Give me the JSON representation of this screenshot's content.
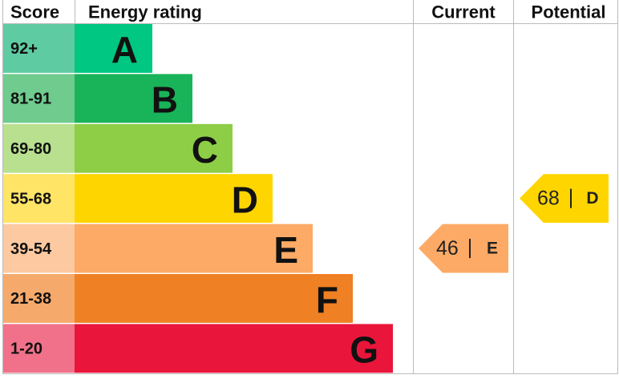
{
  "header": {
    "score": "Score",
    "rating": "Energy rating",
    "current": "Current",
    "potential": "Potential"
  },
  "bands": [
    {
      "score": "92+",
      "letter": "A",
      "color": "#00c781",
      "score_color": "#5fcba3"
    },
    {
      "score": "81-91",
      "letter": "B",
      "color": "#19b459",
      "score_color": "#6fcb8e"
    },
    {
      "score": "69-80",
      "letter": "C",
      "color": "#8dce46",
      "score_color": "#b8e08e"
    },
    {
      "score": "55-68",
      "letter": "D",
      "color": "#ffd500",
      "score_color": "#ffe466"
    },
    {
      "score": "39-54",
      "letter": "E",
      "color": "#fcaa65",
      "score_color": "#fdc9a0"
    },
    {
      "score": "21-38",
      "letter": "F",
      "color": "#ef8023",
      "score_color": "#f5a96b"
    },
    {
      "score": "1-20",
      "letter": "G",
      "color": "#e9153b",
      "score_color": "#f07189"
    }
  ],
  "current": {
    "value": 46,
    "letter": "E"
  },
  "potential": {
    "value": 68,
    "letter": "D"
  }
}
